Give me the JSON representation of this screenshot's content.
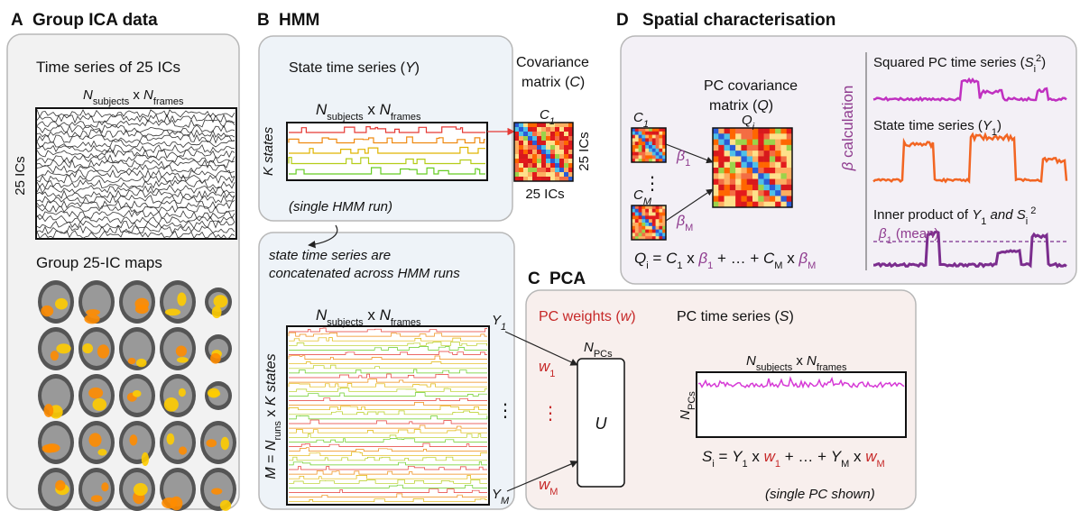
{
  "panels": {
    "a": {
      "letter": "A",
      "title": "Group ICA data",
      "time_series_title": "Time series of 25 ICs",
      "dims": [
        "N",
        "subjects",
        " x ",
        "N",
        "frames"
      ],
      "ics_axis": "25 ICs",
      "maps_title": "Group 25-IC maps"
    },
    "b": {
      "letter": "B",
      "title": "HMM",
      "state_title": [
        "State time series (",
        "Y",
        ")"
      ],
      "cov_title_1": "Covariance",
      "cov_title_2": [
        "matrix (",
        "C",
        ")"
      ],
      "dims": [
        "N",
        "subjects",
        " x ",
        "N",
        "frames"
      ],
      "k_axis": "K states",
      "cov_label": [
        "C",
        "1"
      ],
      "cov_right": "25 ICs",
      "cov_bottom": "25 ICs",
      "note": "(single HMM run)",
      "concat_note_1": "state time series are",
      "concat_note_2": "concatenated across HMM runs",
      "concat_dims": [
        "N",
        "subjects",
        " x ",
        "N",
        "frames"
      ],
      "concat_axis": [
        "M",
        " = ",
        "N",
        "runs",
        " x ",
        "K states"
      ],
      "y_first": [
        "Y",
        "1"
      ],
      "y_last": [
        "Y",
        "M"
      ],
      "ellipsis": "⋮"
    },
    "c": {
      "letter": "C",
      "title": "PCA",
      "weights_title": [
        "PC weights (",
        "w",
        ")"
      ],
      "ts_title": [
        "PC time series (",
        "S",
        ")"
      ],
      "npcs": [
        "N",
        "PCs"
      ],
      "u": "U",
      "w_first": [
        "w",
        "1"
      ],
      "w_last": [
        "w",
        "M"
      ],
      "ellipsis": "⋮",
      "dims": [
        "N",
        "subjects",
        " x ",
        "N",
        "frames"
      ],
      "npcs_axis": [
        "N",
        "PCs"
      ],
      "equation": [
        "S",
        "i",
        " = ",
        "Y",
        "1",
        " x ",
        "w",
        "1",
        " + … + ",
        "Y",
        "M",
        " x ",
        "w",
        "M"
      ],
      "note": "(single PC shown)"
    },
    "d": {
      "letter": "D",
      "title": "Spatial characterisation",
      "cov_title_1": "PC covariance",
      "cov_title_2": [
        "matrix (",
        "Q",
        ")"
      ],
      "c_first": [
        "C",
        "1"
      ],
      "c_last": [
        "C",
        "M"
      ],
      "ellipsis": "⋮",
      "beta_first": [
        "β",
        "1"
      ],
      "beta_last": [
        "β",
        "M"
      ],
      "q_label": [
        "Q",
        "i"
      ],
      "equation": [
        "Q",
        "i",
        " = ",
        "C",
        "1",
        " x ",
        "β",
        "1",
        " + … + ",
        "C",
        "M",
        " x ",
        "β",
        "M"
      ],
      "beta_axis": [
        "β",
        " calculation"
      ],
      "sq_title": [
        "Squared PC time series (",
        "S",
        "i",
        "2",
        ")"
      ],
      "state_title": [
        "State time series (",
        "Y",
        "1",
        ")"
      ],
      "inner_title": [
        "Inner product of ",
        "Y",
        "1",
        " and S",
        "i",
        " 2"
      ],
      "mean_label": [
        "β",
        "1",
        " (mean)"
      ]
    }
  }
}
